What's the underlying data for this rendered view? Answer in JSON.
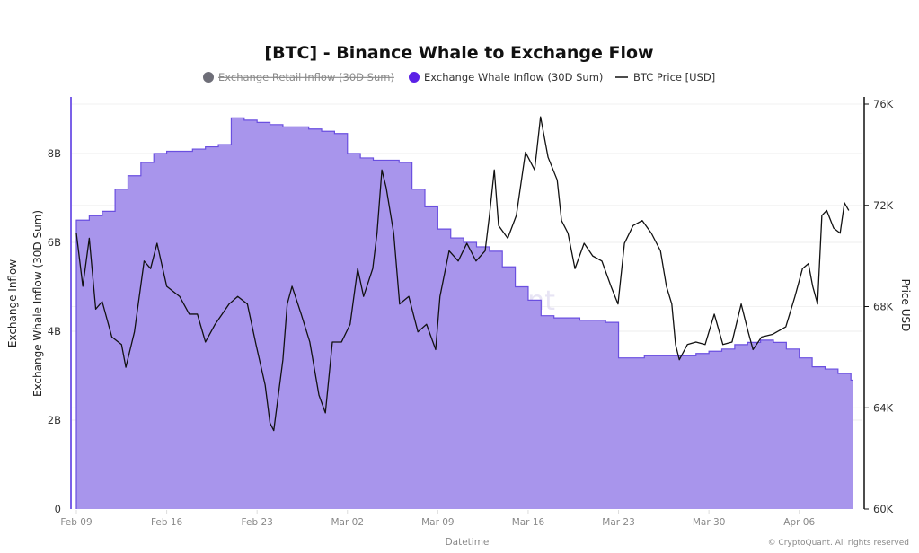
{
  "chart_data": {
    "type": "area+line",
    "title": "[BTC] - Binance Whale to Exchange Flow",
    "legend": {
      "placement": "top-center",
      "entries": [
        {
          "label": "Exchange Retail Inflow (30D Sum)",
          "color": "#6e6e78",
          "hidden": true
        },
        {
          "label": "Exchange Whale Inflow (30D Sum)",
          "color": "#5b21e6",
          "hidden": false
        },
        {
          "label": "BTC Price [USD]",
          "color": "#111111",
          "hidden": false
        }
      ]
    },
    "xlabel": "Datetime",
    "ylabel_left_outer": "Exchange Inflow",
    "ylabel_left": "Exchange Whale Inflow (30D Sum)",
    "ylabel_right": "Price USD",
    "x_ticks": [
      "Feb 09",
      "Feb 16",
      "Feb 23",
      "Mar 02",
      "Mar 09",
      "Mar 16",
      "Mar 23",
      "Mar 30",
      "Apr 06"
    ],
    "y_left_ticks": [
      "0",
      "2B",
      "4B",
      "6B",
      "8B"
    ],
    "y_left_range": [
      0,
      9.2
    ],
    "y_left_unit": "B",
    "y_right_ticks": [
      "60K",
      "64K",
      "68K",
      "72K",
      "76K"
    ],
    "y_right_range": [
      60,
      76
    ],
    "y_right_unit": "K",
    "grid": true,
    "watermark": "CryptoQuant",
    "footer": "© CryptoQuant. All rights reserved",
    "colors": {
      "area_fill": "#a895ec",
      "area_line": "#6a4fe0",
      "price_line": "#111111",
      "left_axis": "#7b61e8"
    },
    "series": [
      {
        "name": "Exchange Whale Inflow (30D Sum)",
        "type": "area",
        "axis": "left",
        "x": [
          "Feb 09",
          "Feb 10",
          "Feb 11",
          "Feb 12",
          "Feb 13",
          "Feb 14",
          "Feb 15",
          "Feb 16",
          "Feb 17",
          "Feb 18",
          "Feb 19",
          "Feb 20",
          "Feb 21",
          "Feb 22",
          "Feb 23",
          "Feb 24",
          "Feb 25",
          "Feb 26",
          "Feb 27",
          "Feb 28",
          "Mar 01",
          "Mar 02",
          "Mar 03",
          "Mar 04",
          "Mar 05",
          "Mar 06",
          "Mar 07",
          "Mar 08",
          "Mar 09",
          "Mar 10",
          "Mar 11",
          "Mar 12",
          "Mar 13",
          "Mar 14",
          "Mar 15",
          "Mar 16",
          "Mar 17",
          "Mar 18",
          "Mar 19",
          "Mar 20",
          "Mar 21",
          "Mar 22",
          "Mar 23",
          "Mar 24",
          "Mar 25",
          "Mar 26",
          "Mar 27",
          "Mar 28",
          "Mar 29",
          "Mar 30",
          "Mar 31",
          "Apr 01",
          "Apr 02",
          "Apr 03",
          "Apr 04",
          "Apr 05",
          "Apr 06",
          "Apr 07",
          "Apr 08",
          "Apr 09",
          "Apr 10"
        ],
        "values": [
          6.5,
          6.6,
          6.7,
          7.2,
          7.5,
          7.8,
          8.0,
          8.05,
          8.05,
          8.1,
          8.15,
          8.2,
          8.8,
          8.75,
          8.7,
          8.65,
          8.6,
          8.6,
          8.55,
          8.5,
          8.45,
          8.0,
          7.9,
          7.85,
          7.85,
          7.8,
          7.2,
          6.8,
          6.3,
          6.1,
          6.0,
          5.9,
          5.8,
          5.45,
          5.0,
          4.7,
          4.35,
          4.3,
          4.3,
          4.25,
          4.25,
          4.2,
          3.4,
          3.4,
          3.45,
          3.45,
          3.45,
          3.45,
          3.5,
          3.55,
          3.6,
          3.7,
          3.75,
          3.8,
          3.75,
          3.6,
          3.4,
          3.2,
          3.15,
          3.05,
          2.9
        ]
      },
      {
        "name": "BTC Price [USD]",
        "type": "line",
        "axis": "right",
        "x": [
          "Feb 09 00:00",
          "Feb 09 12:00",
          "Feb 10 00:00",
          "Feb 10 12:00",
          "Feb 11 00:00",
          "Feb 11 18:00",
          "Feb 12 12:00",
          "Feb 12 20:00",
          "Feb 13 12:00",
          "Feb 14 06:00",
          "Feb 14 18:00",
          "Feb 15 06:00",
          "Feb 16 00:00",
          "Feb 17 00:00",
          "Feb 17 18:00",
          "Feb 18 09:00",
          "Feb 19 00:00",
          "Feb 19 18:00",
          "Feb 20 20:00",
          "Feb 21 12:00",
          "Feb 22 06:00",
          "Feb 22 22:00",
          "Feb 23 15:00",
          "Feb 24 00:00",
          "Feb 24 07:00",
          "Feb 25 00:00",
          "Feb 25 08:00",
          "Feb 25 17:00",
          "Feb 26 10:00",
          "Feb 27 02:00",
          "Feb 27 19:00",
          "Feb 28 07:00",
          "Feb 28 20:00",
          "Mar 01 13:00",
          "Mar 02 05:00",
          "Mar 02 19:00",
          "Mar 03 06:00",
          "Mar 03 23:00",
          "Mar 04 07:00",
          "Mar 04 16:00",
          "Mar 05 00:00",
          "Mar 05 14:00",
          "Mar 06 01:00",
          "Mar 06 18:00",
          "Mar 07 11:00",
          "Mar 08 03:00",
          "Mar 08 20:00",
          "Mar 09 04:00",
          "Mar 09 21:00",
          "Mar 10 14:00",
          "Mar 11 06:00",
          "Mar 11 23:00",
          "Mar 12 16:00",
          "Mar 13 00:00",
          "Mar 13 09:00",
          "Mar 13 17:00",
          "Mar 14 10:00",
          "Mar 15 02:00",
          "Mar 15 19:00",
          "Mar 16 12:00",
          "Mar 16 23:00",
          "Mar 17 13:00",
          "Mar 18 06:00",
          "Mar 18 14:00",
          "Mar 19 02:00",
          "Mar 19 15:00",
          "Mar 20 08:00",
          "Mar 21 00:00",
          "Mar 21 17:00",
          "Mar 22 10:00",
          "Mar 22 23:00",
          "Mar 23 11:00",
          "Mar 24 03:00",
          "Mar 24 20:00",
          "Mar 25 13:00",
          "Mar 26 06:00",
          "Mar 26 17:00",
          "Mar 27 03:00",
          "Mar 27 10:00",
          "Mar 27 17:00",
          "Mar 28 08:00",
          "Mar 29 00:00",
          "Mar 29 17:00",
          "Mar 30 10:00",
          "Mar 31 02:00",
          "Mar 31 19:00",
          "Apr 01 12:00",
          "Apr 02 01:00",
          "Apr 02 10:00",
          "Apr 03 02:00",
          "Apr 03 22:00",
          "Apr 04 23:00",
          "Apr 05 16:00",
          "Apr 06 06:00",
          "Apr 06 17:00",
          "Apr 07 01:00",
          "Apr 07 10:00",
          "Apr 07 18:00",
          "Apr 08 03:00",
          "Apr 08 16:00",
          "Apr 09 04:00",
          "Apr 09 12:00",
          "Apr 09 20:00"
        ],
        "values": [
          70.9,
          68.8,
          70.7,
          67.9,
          68.2,
          66.8,
          66.5,
          65.6,
          67.0,
          69.8,
          69.5,
          70.5,
          68.8,
          68.4,
          67.7,
          67.7,
          66.6,
          67.3,
          68.1,
          68.4,
          68.1,
          66.5,
          64.9,
          63.4,
          63.1,
          65.9,
          68.1,
          68.8,
          67.7,
          66.6,
          64.5,
          63.8,
          66.6,
          66.6,
          67.3,
          69.5,
          68.4,
          69.5,
          70.9,
          73.4,
          72.7,
          70.9,
          68.1,
          68.4,
          67.0,
          67.3,
          66.3,
          68.4,
          70.2,
          69.8,
          70.5,
          69.8,
          70.2,
          71.6,
          73.4,
          71.2,
          70.7,
          71.6,
          74.1,
          73.4,
          75.5,
          73.9,
          73.0,
          71.4,
          70.9,
          69.5,
          70.5,
          70.0,
          69.8,
          68.8,
          68.1,
          70.5,
          71.2,
          71.4,
          70.9,
          70.2,
          68.8,
          68.1,
          66.5,
          65.9,
          66.5,
          66.6,
          66.5,
          67.7,
          66.5,
          66.6,
          68.1,
          67.0,
          66.3,
          66.8,
          66.9,
          67.2,
          68.4,
          69.5,
          69.7,
          68.8,
          68.1,
          71.6,
          71.8,
          71.1,
          70.9,
          72.1,
          71.8
        ]
      }
    ]
  }
}
